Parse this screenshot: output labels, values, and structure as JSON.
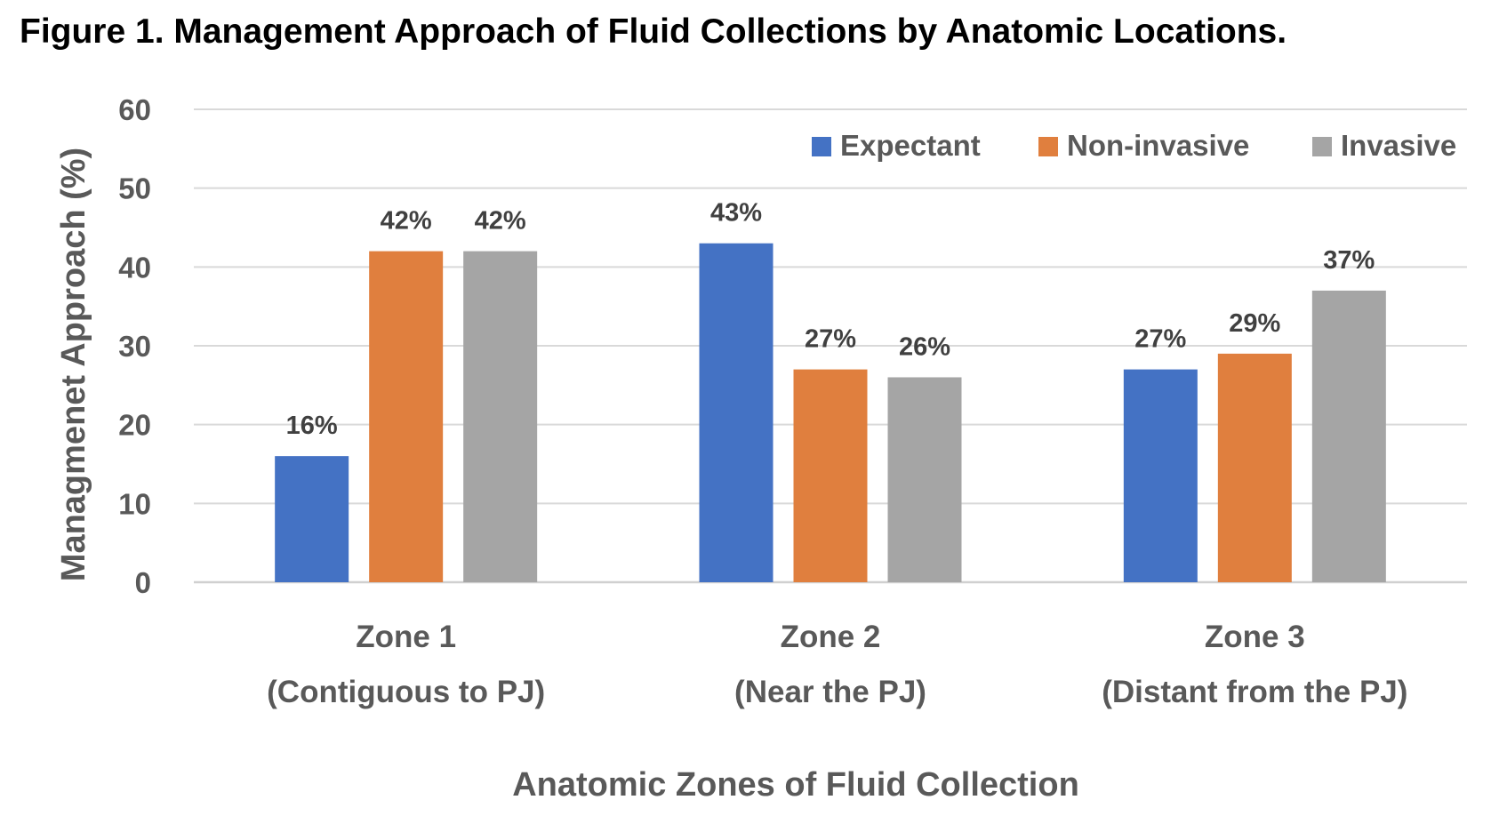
{
  "figure": {
    "title": "Figure 1. Management Approach of Fluid Collections by Anatomic Locations."
  },
  "chart_data": {
    "type": "bar",
    "title": "",
    "xlabel": "Anatomic Zones of Fluid Collection",
    "ylabel": "Managmenet Approach (%)",
    "ylim": [
      0,
      60
    ],
    "yticks": [
      0,
      10,
      20,
      30,
      40,
      50,
      60
    ],
    "grid": true,
    "legend_position": "top-right",
    "categories": [
      {
        "line1": "Zone 1",
        "line2": "(Contiguous to PJ)"
      },
      {
        "line1": "Zone 2",
        "line2": "(Near the PJ)"
      },
      {
        "line1": "Zone 3",
        "line2": "(Distant from the PJ)"
      }
    ],
    "series": [
      {
        "name": "Expectant",
        "color": "#4472C4",
        "values": [
          16,
          43,
          27
        ],
        "labels": [
          "16%",
          "43%",
          "27%"
        ]
      },
      {
        "name": "Non-invasive",
        "color": "#E07F3E",
        "values": [
          42,
          27,
          29
        ],
        "labels": [
          "42%",
          "27%",
          "29%"
        ]
      },
      {
        "name": "Invasive",
        "color": "#A5A5A5",
        "values": [
          42,
          26,
          37
        ],
        "labels": [
          "42%",
          "26%",
          "37%"
        ]
      }
    ]
  }
}
